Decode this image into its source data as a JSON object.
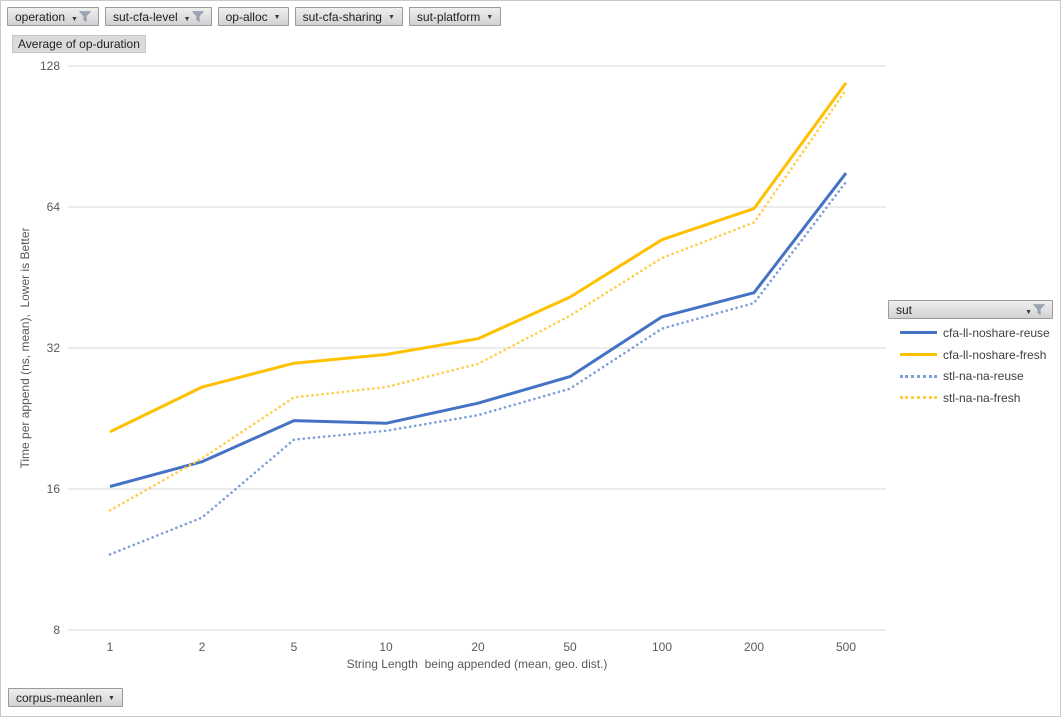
{
  "filters": {
    "top": [
      {
        "label": "operation",
        "filtered": true
      },
      {
        "label": "sut-cfa-level",
        "filtered": true
      },
      {
        "label": "op-alloc",
        "filtered": false
      },
      {
        "label": "sut-cfa-sharing",
        "filtered": false
      },
      {
        "label": "sut-platform",
        "filtered": false
      }
    ],
    "bottom": [
      {
        "label": "corpus-meanlen",
        "filtered": false
      }
    ]
  },
  "value_field_label": "Average of op-duration",
  "legend": {
    "field_label": "sut",
    "filtered": true,
    "position": "right"
  },
  "colors": {
    "gridline": "#d9d9d9",
    "axis_text": "#595959",
    "legend_text": "#404040",
    "solid_blue": "#4472C4",
    "solid_yellow": "#FFC000",
    "dotted_blue": "#7D9FD9",
    "dotted_yellow": "#FFCC44"
  },
  "chart_data": {
    "type": "line",
    "title": "",
    "xlabel": "String Length  being appended (mean, geo. dist.)",
    "ylabel": "Time per append (ns, mean),  Lower is Better",
    "x_scale": "category",
    "y_scale": "log2",
    "ylim": [
      8,
      128
    ],
    "y_ticks": [
      128,
      64,
      32,
      16,
      8
    ],
    "grid": "horizontal",
    "legend_position": "right",
    "categories": [
      "1",
      "2",
      "5",
      "10",
      "20",
      "50",
      "100",
      "200",
      "500"
    ],
    "series": [
      {
        "name": "cfa-ll-noshare-reuse",
        "color": "#4472C4",
        "style": "solid",
        "values": [
          16.2,
          18.3,
          22.4,
          22.1,
          24.4,
          27.8,
          37.3,
          42.0,
          75.6
        ]
      },
      {
        "name": "cfa-ll-noshare-fresh",
        "color": "#FFC000",
        "style": "solid",
        "values": [
          21.2,
          26.4,
          29.7,
          31.0,
          33.5,
          41.1,
          54.5,
          63.5,
          117.8
        ]
      },
      {
        "name": "stl-na-na-reuse",
        "color": "#7D9FD9",
        "style": "dotted",
        "values": [
          11.6,
          13.9,
          20.4,
          21.3,
          23.0,
          26.2,
          35.2,
          39.9,
          72.4
        ]
      },
      {
        "name": "stl-na-na-fresh",
        "color": "#FFCC44",
        "style": "dotted",
        "values": [
          14.4,
          18.6,
          25.1,
          26.4,
          29.6,
          37.5,
          49.8,
          59.3,
          113.8
        ]
      }
    ]
  }
}
